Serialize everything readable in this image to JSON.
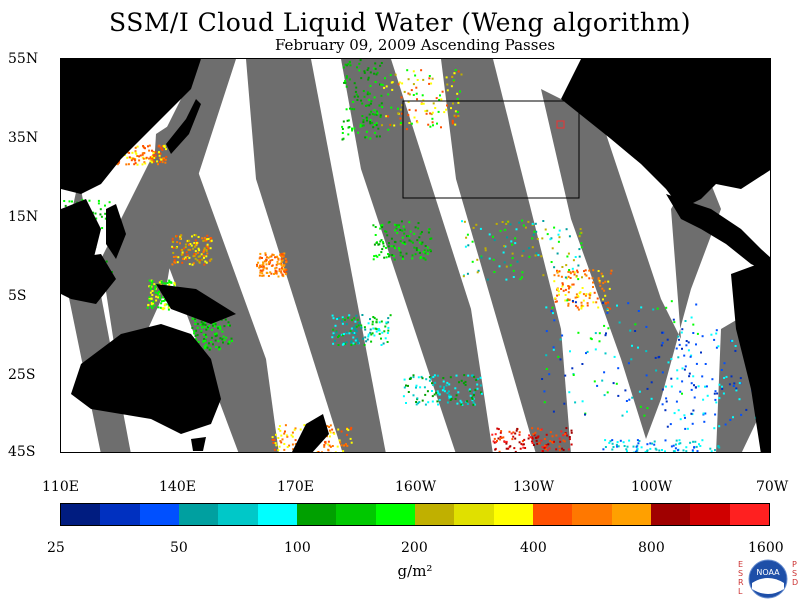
{
  "title": "SSM/I Cloud Liquid Water (Weng algorithm)",
  "subtitle": "February 09, 2009  Ascending Passes",
  "lat_labels": [
    "55N",
    "35N",
    "15N",
    "5S",
    "25S",
    "45S"
  ],
  "lon_labels": [
    "110E",
    "140E",
    "170E",
    "160W",
    "130W",
    "100W",
    "70W"
  ],
  "colorbar": {
    "colors": [
      "#001c80",
      "#0030c0",
      "#0050ff",
      "#00a0a0",
      "#00c8c8",
      "#00ffff",
      "#00a000",
      "#00c800",
      "#00ff00",
      "#c0b000",
      "#e0e000",
      "#ffff00",
      "#ff5000",
      "#ff7800",
      "#ffa000",
      "#a00000",
      "#d00000",
      "#ff2020"
    ],
    "tick_labels": [
      "25",
      "50",
      "100",
      "200",
      "400",
      "800",
      "1600"
    ],
    "units": "g/m²"
  },
  "colors": {
    "land": "#000000",
    "no_data": "#6e6e6e",
    "background": "#ffffff"
  },
  "logo": {
    "left": "ESRL",
    "right": "PSD",
    "center": "NOAA"
  }
}
